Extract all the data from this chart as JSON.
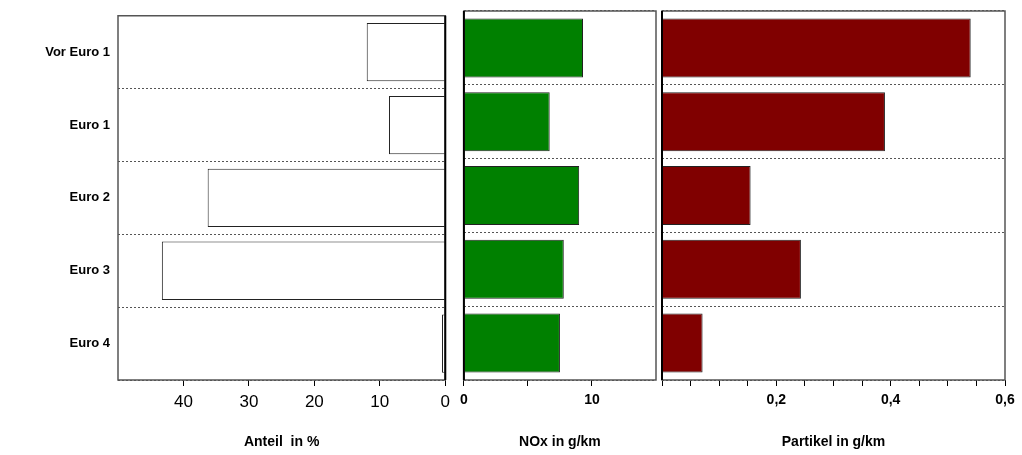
{
  "chart_data": [
    {
      "type": "bar",
      "orientation": "horizontal",
      "categories": [
        "Vor Euro 1",
        "Euro 1",
        "Euro 2",
        "Euro 3",
        "Euro 4"
      ],
      "values": [
        12,
        8.6,
        36.3,
        43.3,
        0.5
      ],
      "color": "#ffffff",
      "xlabel": "Anteil  in %",
      "xlim": [
        50,
        0
      ],
      "xticks": [
        40,
        30,
        20,
        10,
        0
      ],
      "grid": "y"
    },
    {
      "type": "bar",
      "orientation": "horizontal",
      "values": [
        9.3,
        6.7,
        9.0,
        7.8,
        7.5
      ],
      "categories": [
        null,
        null,
        null,
        null,
        null
      ],
      "color": "#008000",
      "xlabel": "NOx in g/km",
      "xlim": [
        0,
        15
      ],
      "xticks": [
        0,
        {
          "value": 5,
          "label": null
        },
        10
      ],
      "grid": "y",
      "tick_labels": "x"
    },
    {
      "type": "bar",
      "orientation": "horizontal",
      "categories": [
        null,
        null,
        null,
        null,
        null
      ],
      "values": [
        0.54,
        0.39,
        0.155,
        0.243,
        0.071
      ],
      "color": "#800000",
      "xlabel": "Partikel in g/km",
      "xlim": [
        0,
        0.6
      ],
      "xticks": [
        {
          "value": 0,
          "label": null
        },
        {
          "value": 0.05,
          "label": null
        },
        {
          "value": 0.1,
          "label": null
        },
        {
          "value": 0.15,
          "label": null
        },
        {
          "value": 0.2,
          "label": "0,2"
        },
        {
          "value": 0.25,
          "label": null
        },
        {
          "value": 0.3,
          "label": null
        },
        {
          "value": 0.35,
          "label": null
        },
        {
          "value": 0.4,
          "label": "0,4"
        },
        {
          "value": 0.45,
          "label": null
        },
        {
          "value": 0.5,
          "label": null
        },
        {
          "value": 0.55,
          "label": null
        },
        {
          "value": 0.6,
          "label": "0,6"
        }
      ],
      "grid": "y",
      "tick_labels": "x"
    }
  ]
}
